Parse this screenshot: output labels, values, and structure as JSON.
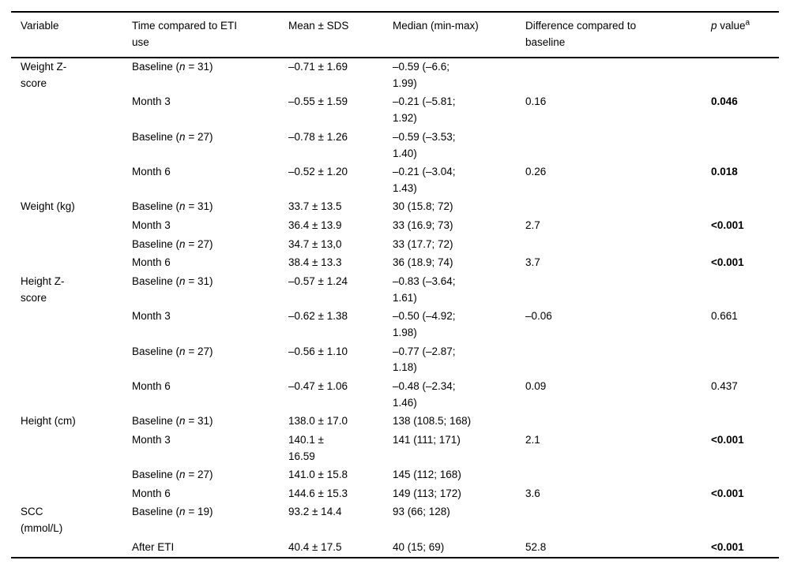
{
  "table": {
    "columns": [
      {
        "key": "variable",
        "label": "Variable"
      },
      {
        "key": "time",
        "label": "Time compared to ETI\nuse"
      },
      {
        "key": "mean",
        "label": "Mean ± SDS"
      },
      {
        "key": "median",
        "label": "Median (min-max)"
      },
      {
        "key": "difference",
        "label": "Difference compared to\nbaseline"
      },
      {
        "key": "p",
        "label": "<i>p</i> value<sup>a</sup>"
      }
    ],
    "rows": [
      {
        "variable": "Weight Z-\nscore",
        "time": "Baseline (<i>n</i> = 31)",
        "mean": "–0.71 ± 1.69",
        "median": "–0.59 (–6.6;\n1.99)",
        "difference": "",
        "p": ""
      },
      {
        "variable": "",
        "time": "Month 3",
        "mean": "–0.55 ± 1.59",
        "median": "–0.21 (–5.81;\n1.92)",
        "difference": "0.16",
        "p": "<b>0.046</b>"
      },
      {
        "variable": "",
        "time": "Baseline (<i>n</i> = 27)",
        "mean": "–0.78 ± 1.26",
        "median": "–0.59 (–3.53;\n1.40)",
        "difference": "",
        "p": ""
      },
      {
        "variable": "",
        "time": "Month 6",
        "mean": "–0.52 ± 1.20",
        "median": "–0.21 (–3.04;\n1.43)",
        "difference": "0.26",
        "p": "<b>0.018</b>"
      },
      {
        "variable": "Weight (kg)",
        "time": "Baseline (<i>n</i> = 31)",
        "mean": "33.7 ± 13.5",
        "median": "30 (15.8; 72)",
        "difference": "",
        "p": ""
      },
      {
        "variable": "",
        "time": "Month 3",
        "mean": "36.4 ± 13.9",
        "median": "33 (16.9; 73)",
        "difference": "2.7",
        "p": "<b>&lt;0.001</b>"
      },
      {
        "variable": "",
        "time": "Baseline (<i>n</i> = 27)",
        "mean": "34.7 ± 13,0",
        "median": "33 (17.7; 72)",
        "difference": "",
        "p": ""
      },
      {
        "variable": "",
        "time": "Month 6",
        "mean": "38.4 ± 13.3",
        "median": "36 (18.9; 74)",
        "difference": "3.7",
        "p": "<b>&lt;0.001</b>"
      },
      {
        "variable": "Height Z-\nscore",
        "time": "Baseline (<i>n</i> = 31)",
        "mean": "–0.57 ± 1.24",
        "median": "–0.83 (–3.64;\n1.61)",
        "difference": "",
        "p": ""
      },
      {
        "variable": "",
        "time": "Month 3",
        "mean": "–0.62 ± 1.38",
        "median": "–0.50 (–4.92;\n1.98)",
        "difference": "–0.06",
        "p": "0.661"
      },
      {
        "variable": "",
        "time": "Baseline (<i>n</i> = 27)",
        "mean": "–0.56 ± 1.10",
        "median": "–0.77 (–2.87;\n1.18)",
        "difference": "",
        "p": ""
      },
      {
        "variable": "",
        "time": "Month 6",
        "mean": "–0.47 ± 1.06",
        "median": "–0.48 (–2.34;\n1.46)",
        "difference": "0.09",
        "p": "0.437"
      },
      {
        "variable": "Height (cm)",
        "time": "Baseline (<i>n</i> = 31)",
        "mean": "138.0 ± 17.0",
        "median": "138 (108.5; 168)",
        "difference": "",
        "p": ""
      },
      {
        "variable": "",
        "time": "Month 3",
        "mean": "140.1 ±\n16.59",
        "median": "141 (111; 171)",
        "difference": "2.1",
        "p": "<b>&lt;0.001</b>"
      },
      {
        "variable": "",
        "time": "Baseline (<i>n</i> = 27)",
        "mean": "141.0 ± 15.8",
        "median": "145 (112; 168)",
        "difference": "",
        "p": ""
      },
      {
        "variable": "",
        "time": "Month 6",
        "mean": "144.6 ± 15.3",
        "median": "149 (113; 172)",
        "difference": "3.6",
        "p": "<b>&lt;0.001</b>"
      },
      {
        "variable": "SCC\n(mmol/L)",
        "time": "Baseline (<i>n</i> = 19)",
        "mean": "93.2 ± 14.4",
        "median": "93 (66; 128)",
        "difference": "",
        "p": ""
      },
      {
        "variable": "",
        "time": "After ETI",
        "mean": "40.4 ± 17.5",
        "median": "40 (15; 69)",
        "difference": "52.8",
        "p": "<b>&lt;0.001</b>"
      }
    ]
  }
}
